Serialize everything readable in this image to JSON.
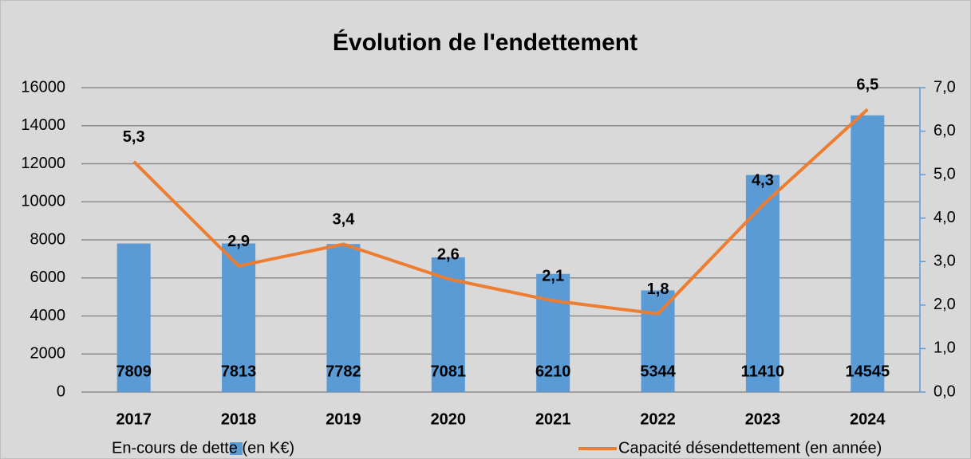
{
  "chart_data": {
    "type": "bar_line",
    "title": "Évolution de l'endettement",
    "categories": [
      "2017",
      "2018",
      "2019",
      "2020",
      "2021",
      "2022",
      "2023",
      "2024"
    ],
    "series": [
      {
        "name": "En-cours de dette (en K€)",
        "color": "#5b9bd5",
        "type": "bar",
        "values": [
          7809,
          7813,
          7782,
          7081,
          6210,
          5344,
          11410,
          14545
        ]
      },
      {
        "name": "Capacité désendettement (en année)",
        "color": "#ed7d31",
        "type": "line",
        "axis": "y2",
        "values": [
          5.3,
          2.9,
          3.4,
          2.6,
          2.1,
          1.8,
          4.3,
          6.5
        ],
        "value_labels": [
          "5,3",
          "2,9",
          "3,4",
          "2,6",
          "2,1",
          "1,8",
          "4,3",
          "6,5"
        ]
      }
    ],
    "ylim": [
      0,
      16000
    ],
    "yticks": [
      0,
      2000,
      4000,
      6000,
      8000,
      10000,
      12000,
      14000,
      16000
    ],
    "y2lim": [
      0,
      7
    ],
    "y2ticks": [
      {
        "value": 0,
        "label": "0,0"
      },
      {
        "value": 1,
        "label": "1,0"
      },
      {
        "value": 2,
        "label": "2,0"
      },
      {
        "value": 3,
        "label": "3,0"
      },
      {
        "value": 4,
        "label": "4,0"
      },
      {
        "value": 5,
        "label": "5,0"
      },
      {
        "value": 6,
        "label": "6,0"
      },
      {
        "value": 7,
        "label": "7,0"
      }
    ],
    "grid": true,
    "legend": "bottom"
  }
}
